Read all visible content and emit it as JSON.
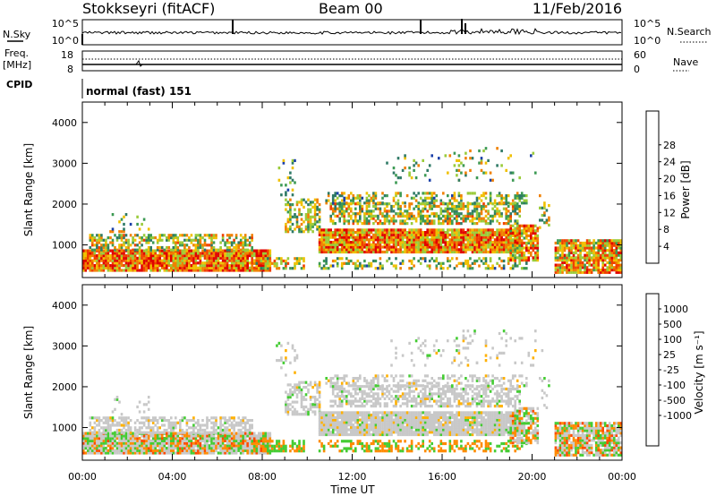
{
  "header": {
    "station": "Stokkseyri (fitACF)",
    "beam": "Beam 00",
    "date": "11/Feb/2016"
  },
  "noise_panel": {
    "left_label": "N.Sky",
    "left_ticks": [
      "10^5",
      "10^0"
    ],
    "right_ticks": [
      "10^5",
      "10^0"
    ],
    "right_label": "N.Search"
  },
  "freq_panel": {
    "left_label_1": "Freq.",
    "left_label_2": "[MHz]",
    "left_ticks": [
      "18",
      "8"
    ],
    "right_ticks": [
      "60",
      "0"
    ],
    "right_label": "Nave"
  },
  "cpid": {
    "label": "CPID",
    "value": "normal (fast) 151"
  },
  "colors": {
    "power": [
      "#0000ff",
      "#1a3fa8",
      "#2f7a66",
      "#3c9a53",
      "#9acb3a",
      "#f0c000",
      "#f08000",
      "#f04000",
      "#e00000"
    ],
    "velocity": [
      "#ff0000",
      "#ff4a00",
      "#ff8a00",
      "#ffb000",
      "#c8c8c8",
      "#44cc33",
      "#2e8b57",
      "#2f6f9f",
      "#1f3f9f",
      "#1010c0"
    ]
  },
  "chart_data": [
    {
      "type": "heatmap",
      "name": "power",
      "ylabel": "Slant Range [km]",
      "ylim": [
        200,
        4500
      ],
      "yticks": [
        "1000",
        "2000",
        "3000",
        "4000"
      ],
      "xlim": [
        0,
        24
      ],
      "xticks": [
        "00:00",
        "04:00",
        "08:00",
        "12:00",
        "16:00",
        "20:00",
        "00:00"
      ],
      "colorbar": {
        "label": "Power [dB]",
        "ticks": [
          "4",
          "8",
          "12",
          "16",
          "20",
          "24",
          "28"
        ]
      }
    },
    {
      "type": "heatmap",
      "name": "velocity",
      "ylabel": "Slant Range [km]",
      "ylim": [
        200,
        4500
      ],
      "yticks": [
        "1000",
        "2000",
        "3000",
        "4000"
      ],
      "xlim": [
        0,
        24
      ],
      "xticks": [
        "00:00",
        "04:00",
        "08:00",
        "12:00",
        "16:00",
        "20:00",
        "00:00"
      ],
      "xlabel": "Time UT",
      "colorbar": {
        "label": "Velocity [m s⁻¹]",
        "ticks": [
          "1000",
          "500",
          "100",
          "25",
          "-25",
          "-100",
          "-500",
          "-1000"
        ]
      }
    }
  ]
}
